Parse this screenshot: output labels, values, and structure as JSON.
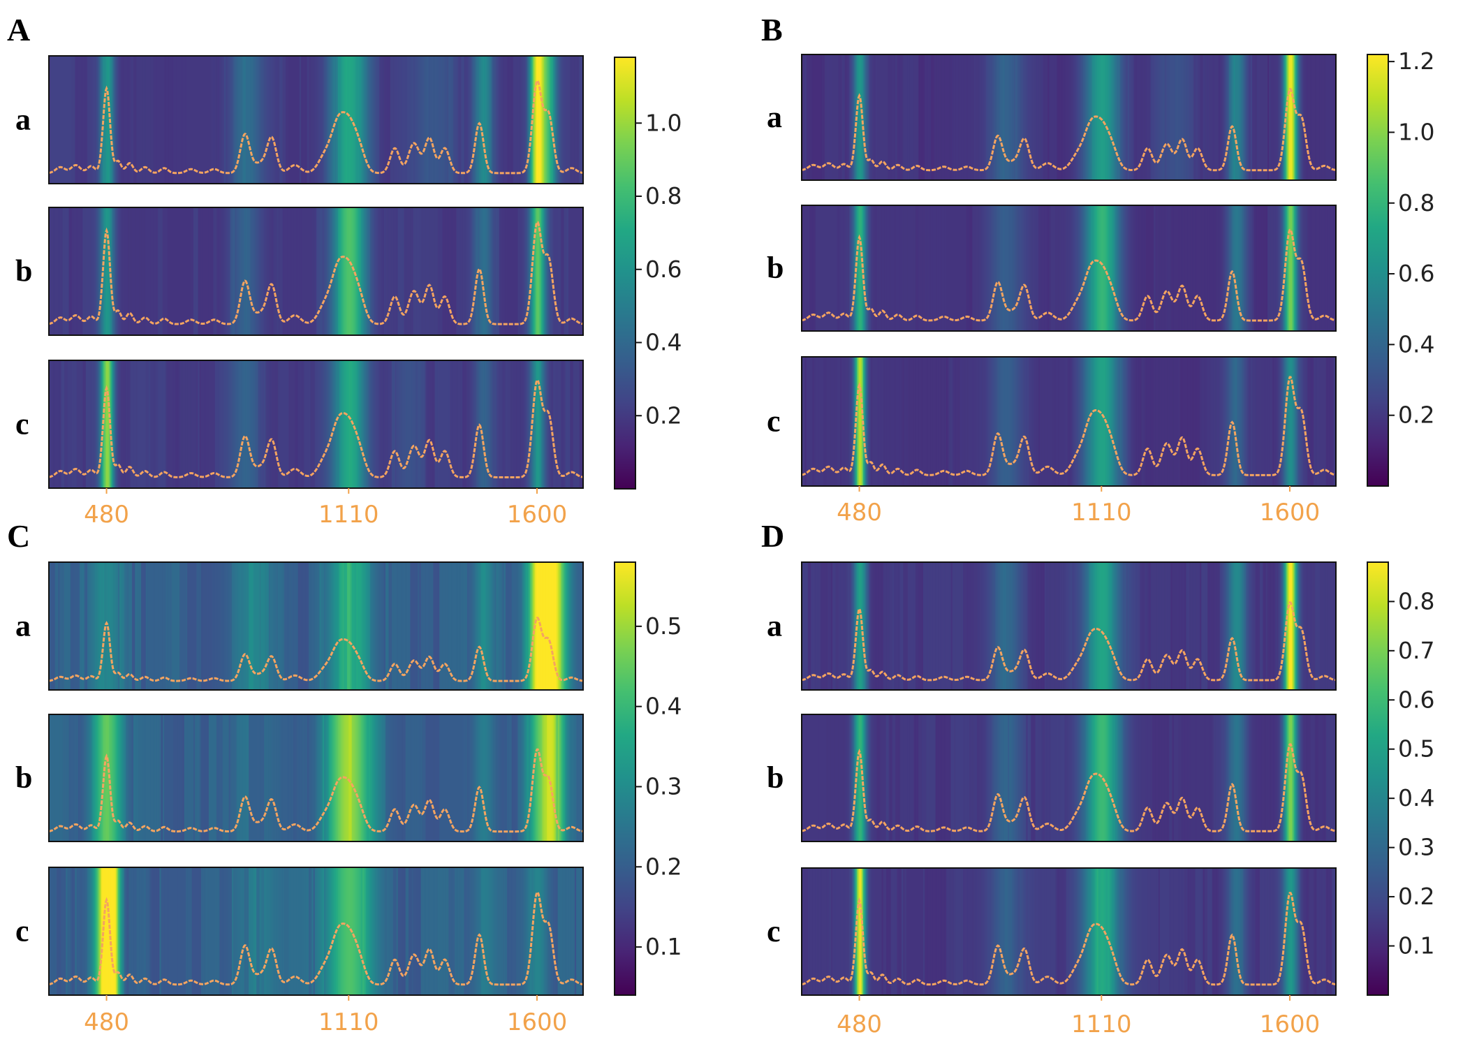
{
  "figure": {
    "colors": {
      "spectrum_line": "#f4a460",
      "tick_label": "#f2a24a",
      "frame": "#111111"
    }
  },
  "chart_data": [
    {
      "type": "heatmap",
      "panel": "A",
      "rows": [
        "a",
        "b",
        "c"
      ],
      "xlim": [
        330,
        1720
      ],
      "x_ticks": [
        480,
        1110,
        1600
      ],
      "x_tick_labels": [
        "480",
        "1110",
        "1600"
      ],
      "colorbar": {
        "range": [
          0.0,
          1.18
        ],
        "ticks": [
          0.2,
          0.4,
          0.6,
          0.8,
          1.0
        ],
        "tick_labels": [
          "0.2",
          "0.4",
          "0.6",
          "0.8",
          "1.0"
        ]
      },
      "background_intensity": 0.2,
      "bands": [
        [
          {
            "x": 480,
            "w": 14,
            "v": 0.62
          },
          {
            "x": 1110,
            "w": 34,
            "v": 0.72
          },
          {
            "x": 840,
            "w": 30,
            "v": 0.42
          },
          {
            "x": 1460,
            "w": 18,
            "v": 0.55
          },
          {
            "x": 1330,
            "w": 40,
            "v": 0.34
          },
          {
            "x": 1600,
            "w": 14,
            "v": 1.18
          },
          {
            "x": 1630,
            "w": 14,
            "v": 0.7
          }
        ],
        [
          {
            "x": 480,
            "w": 14,
            "v": 0.6
          },
          {
            "x": 1110,
            "w": 32,
            "v": 0.82
          },
          {
            "x": 840,
            "w": 30,
            "v": 0.38
          },
          {
            "x": 1460,
            "w": 18,
            "v": 0.45
          },
          {
            "x": 1600,
            "w": 14,
            "v": 0.85
          }
        ],
        [
          {
            "x": 480,
            "w": 12,
            "v": 1.0
          },
          {
            "x": 1110,
            "w": 32,
            "v": 0.7
          },
          {
            "x": 840,
            "w": 30,
            "v": 0.35
          },
          {
            "x": 1460,
            "w": 18,
            "v": 0.38
          },
          {
            "x": 1600,
            "w": 14,
            "v": 0.6
          },
          {
            "x": 1260,
            "w": 30,
            "v": 0.3
          }
        ]
      ]
    },
    {
      "type": "heatmap",
      "panel": "B",
      "rows": [
        "a",
        "b",
        "c"
      ],
      "xlim": [
        330,
        1720
      ],
      "x_ticks": [
        480,
        1110,
        1600
      ],
      "x_tick_labels": [
        "480",
        "1110",
        "1600"
      ],
      "colorbar": {
        "range": [
          0.0,
          1.22
        ],
        "ticks": [
          0.2,
          0.4,
          0.6,
          0.8,
          1.0,
          1.2
        ],
        "tick_labels": [
          "0.2",
          "0.4",
          "0.6",
          "0.8",
          "1.0",
          "1.2"
        ]
      },
      "background_intensity": 0.18,
      "bands": [
        [
          {
            "x": 480,
            "w": 12,
            "v": 0.65
          },
          {
            "x": 1110,
            "w": 34,
            "v": 0.68
          },
          {
            "x": 860,
            "w": 30,
            "v": 0.4
          },
          {
            "x": 1460,
            "w": 18,
            "v": 0.55
          },
          {
            "x": 1600,
            "w": 12,
            "v": 1.2
          },
          {
            "x": 1300,
            "w": 40,
            "v": 0.3
          }
        ],
        [
          {
            "x": 480,
            "w": 12,
            "v": 0.78
          },
          {
            "x": 1110,
            "w": 32,
            "v": 0.82
          },
          {
            "x": 860,
            "w": 30,
            "v": 0.35
          },
          {
            "x": 1460,
            "w": 18,
            "v": 0.48
          },
          {
            "x": 1600,
            "w": 12,
            "v": 0.95
          }
        ],
        [
          {
            "x": 480,
            "w": 10,
            "v": 1.1
          },
          {
            "x": 1110,
            "w": 34,
            "v": 0.72
          },
          {
            "x": 860,
            "w": 30,
            "v": 0.35
          },
          {
            "x": 1460,
            "w": 18,
            "v": 0.4
          },
          {
            "x": 1600,
            "w": 14,
            "v": 0.6
          }
        ]
      ]
    },
    {
      "type": "heatmap",
      "panel": "C",
      "rows": [
        "a",
        "b",
        "c"
      ],
      "xlim": [
        330,
        1720
      ],
      "x_ticks": [
        480,
        1110,
        1600
      ],
      "x_tick_labels": [
        "480",
        "1110",
        "1600"
      ],
      "colorbar": {
        "range": [
          0.04,
          0.58
        ],
        "ticks": [
          0.1,
          0.2,
          0.3,
          0.4,
          0.5
        ],
        "tick_labels": [
          "0.1",
          "0.2",
          "0.3",
          "0.4",
          "0.5"
        ]
      },
      "background_intensity": 0.2,
      "bands": [
        [
          {
            "x": 480,
            "w": 30,
            "v": 0.3
          },
          {
            "x": 1110,
            "w": 40,
            "v": 0.38
          },
          {
            "x": 860,
            "w": 40,
            "v": 0.28
          },
          {
            "x": 1600,
            "w": 20,
            "v": 0.5
          },
          {
            "x": 1640,
            "w": 26,
            "v": 0.58
          },
          {
            "x": 1460,
            "w": 20,
            "v": 0.3
          }
        ],
        [
          {
            "x": 480,
            "w": 30,
            "v": 0.45
          },
          {
            "x": 1110,
            "w": 44,
            "v": 0.5
          },
          {
            "x": 860,
            "w": 40,
            "v": 0.22
          },
          {
            "x": 1600,
            "w": 22,
            "v": 0.4
          },
          {
            "x": 1640,
            "w": 22,
            "v": 0.48
          },
          {
            "x": 1460,
            "w": 20,
            "v": 0.28
          }
        ],
        [
          {
            "x": 470,
            "w": 20,
            "v": 0.45
          },
          {
            "x": 490,
            "w": 16,
            "v": 0.58
          },
          {
            "x": 1110,
            "w": 44,
            "v": 0.44
          },
          {
            "x": 860,
            "w": 40,
            "v": 0.25
          },
          {
            "x": 1600,
            "w": 20,
            "v": 0.3
          },
          {
            "x": 1460,
            "w": 20,
            "v": 0.25
          }
        ]
      ]
    },
    {
      "type": "heatmap",
      "panel": "D",
      "rows": [
        "a",
        "b",
        "c"
      ],
      "xlim": [
        330,
        1720
      ],
      "x_ticks": [
        480,
        1110,
        1600
      ],
      "x_tick_labels": [
        "480",
        "1110",
        "1600"
      ],
      "colorbar": {
        "range": [
          0.0,
          0.88
        ],
        "ticks": [
          0.1,
          0.2,
          0.3,
          0.4,
          0.5,
          0.6,
          0.7,
          0.8
        ],
        "tick_labels": [
          "0.1",
          "0.2",
          "0.3",
          "0.4",
          "0.5",
          "0.6",
          "0.7",
          "0.8"
        ]
      },
      "background_intensity": 0.14,
      "bands": [
        [
          {
            "x": 480,
            "w": 12,
            "v": 0.5
          },
          {
            "x": 1110,
            "w": 34,
            "v": 0.5
          },
          {
            "x": 860,
            "w": 30,
            "v": 0.3
          },
          {
            "x": 1460,
            "w": 18,
            "v": 0.4
          },
          {
            "x": 1600,
            "w": 12,
            "v": 0.88
          }
        ],
        [
          {
            "x": 480,
            "w": 12,
            "v": 0.58
          },
          {
            "x": 1110,
            "w": 34,
            "v": 0.6
          },
          {
            "x": 860,
            "w": 30,
            "v": 0.28
          },
          {
            "x": 1460,
            "w": 18,
            "v": 0.35
          },
          {
            "x": 1600,
            "w": 12,
            "v": 0.7
          }
        ],
        [
          {
            "x": 480,
            "w": 10,
            "v": 0.85
          },
          {
            "x": 1110,
            "w": 34,
            "v": 0.55
          },
          {
            "x": 860,
            "w": 30,
            "v": 0.28
          },
          {
            "x": 1460,
            "w": 18,
            "v": 0.32
          },
          {
            "x": 1600,
            "w": 14,
            "v": 0.45
          }
        ]
      ]
    }
  ],
  "spectrum": {
    "baseline": 0.05,
    "peaks": [
      {
        "x": 360,
        "h": 0.06,
        "w": 12
      },
      {
        "x": 400,
        "h": 0.08,
        "w": 12
      },
      {
        "x": 440,
        "h": 0.07,
        "w": 10
      },
      {
        "x": 480,
        "h": 0.85,
        "w": 9
      },
      {
        "x": 510,
        "h": 0.12,
        "w": 8
      },
      {
        "x": 540,
        "h": 0.1,
        "w": 9
      },
      {
        "x": 580,
        "h": 0.06,
        "w": 10
      },
      {
        "x": 630,
        "h": 0.05,
        "w": 10
      },
      {
        "x": 700,
        "h": 0.04,
        "w": 12
      },
      {
        "x": 760,
        "h": 0.04,
        "w": 12
      },
      {
        "x": 840,
        "h": 0.38,
        "w": 12
      },
      {
        "x": 910,
        "h": 0.33,
        "w": 12
      },
      {
        "x": 880,
        "h": 0.1,
        "w": 20
      },
      {
        "x": 970,
        "h": 0.08,
        "w": 15
      },
      {
        "x": 1050,
        "h": 0.18,
        "w": 18
      },
      {
        "x": 1080,
        "h": 0.35,
        "w": 16
      },
      {
        "x": 1110,
        "h": 0.5,
        "w": 20
      },
      {
        "x": 1140,
        "h": 0.15,
        "w": 15
      },
      {
        "x": 1230,
        "h": 0.25,
        "w": 12
      },
      {
        "x": 1280,
        "h": 0.3,
        "w": 14
      },
      {
        "x": 1320,
        "h": 0.35,
        "w": 12
      },
      {
        "x": 1360,
        "h": 0.25,
        "w": 12
      },
      {
        "x": 1450,
        "h": 0.5,
        "w": 11
      },
      {
        "x": 1600,
        "h": 0.9,
        "w": 12
      },
      {
        "x": 1630,
        "h": 0.58,
        "w": 12
      },
      {
        "x": 1690,
        "h": 0.05,
        "w": 12
      }
    ],
    "row_scale": [
      [
        0.95,
        1.05,
        1.0
      ],
      [
        0.85,
        0.95,
        1.0
      ],
      [
        0.65,
        0.85,
        0.95
      ],
      [
        0.8,
        0.9,
        0.95
      ]
    ]
  }
}
